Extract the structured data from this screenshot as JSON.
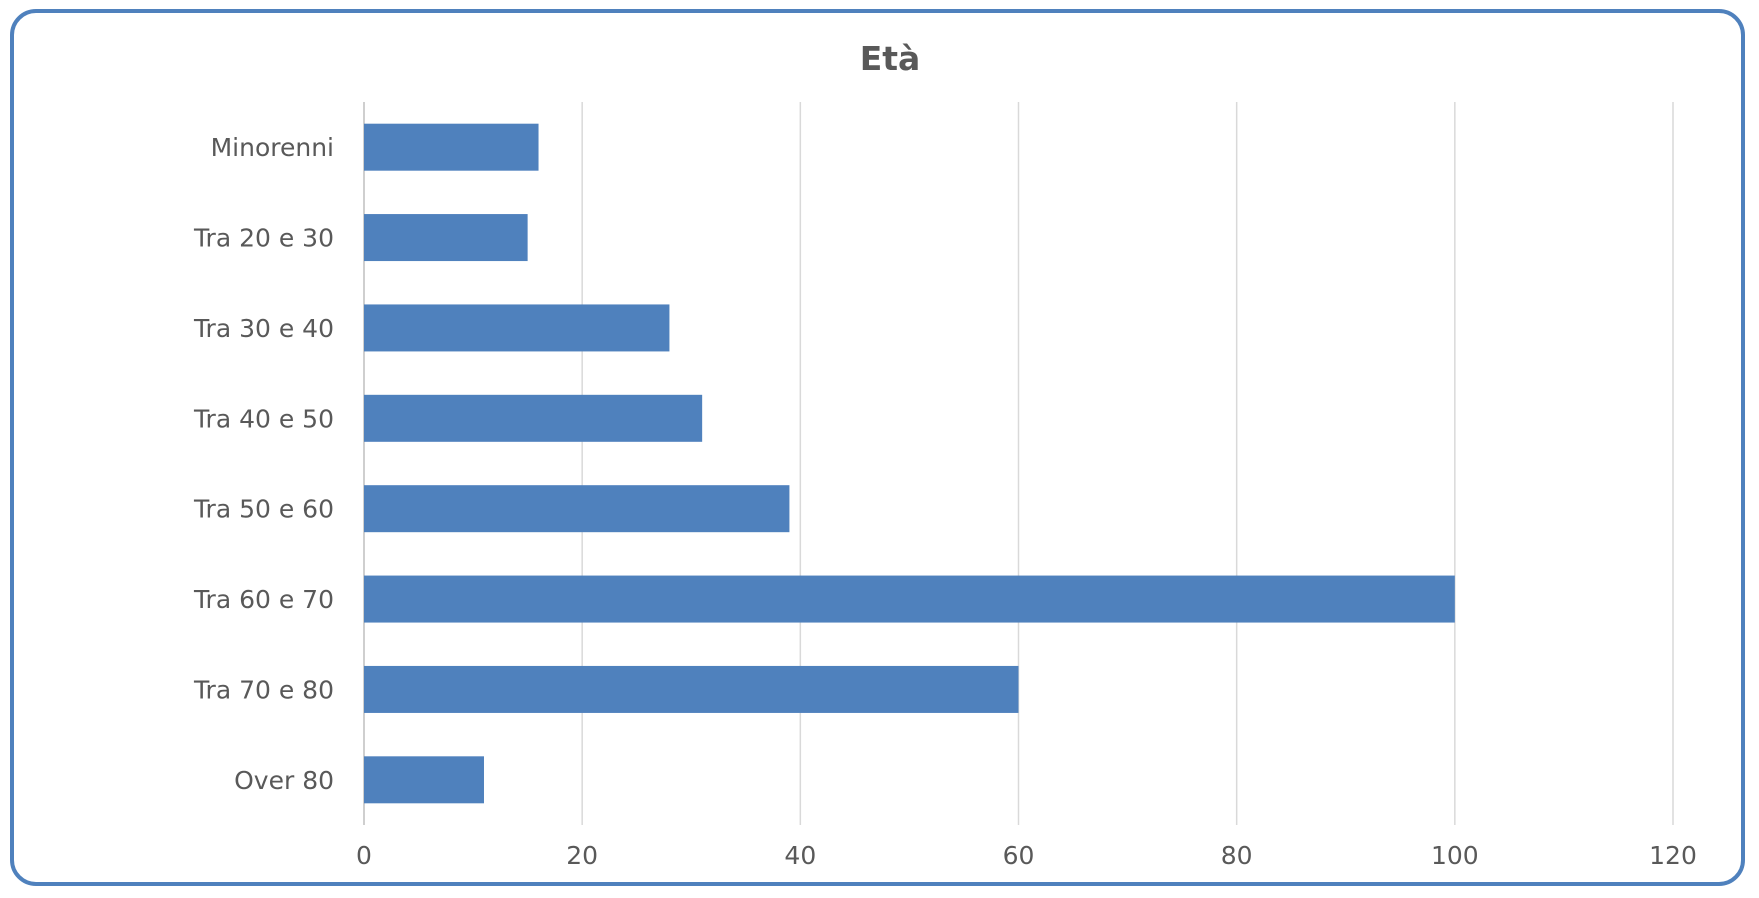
{
  "chart_data": {
    "type": "bar",
    "orientation": "horizontal",
    "title": "Età",
    "categories": [
      "Minorenni",
      "Tra 20 e 30",
      "Tra 30 e 40",
      "Tra 40 e 50",
      "Tra 50 e 60",
      "Tra 60 e 70",
      "Tra 70 e 80",
      "Over 80"
    ],
    "values": [
      16,
      15,
      28,
      31,
      39,
      100,
      60,
      11
    ],
    "xlim": [
      0,
      120
    ],
    "xticks": [
      0,
      20,
      40,
      60,
      80,
      100,
      120
    ],
    "grid": true,
    "legend": "none",
    "colors": {
      "bar": "#4f81bd",
      "border": "#4f81bd",
      "text": "#595959",
      "grid": "#d9d9d9"
    }
  }
}
